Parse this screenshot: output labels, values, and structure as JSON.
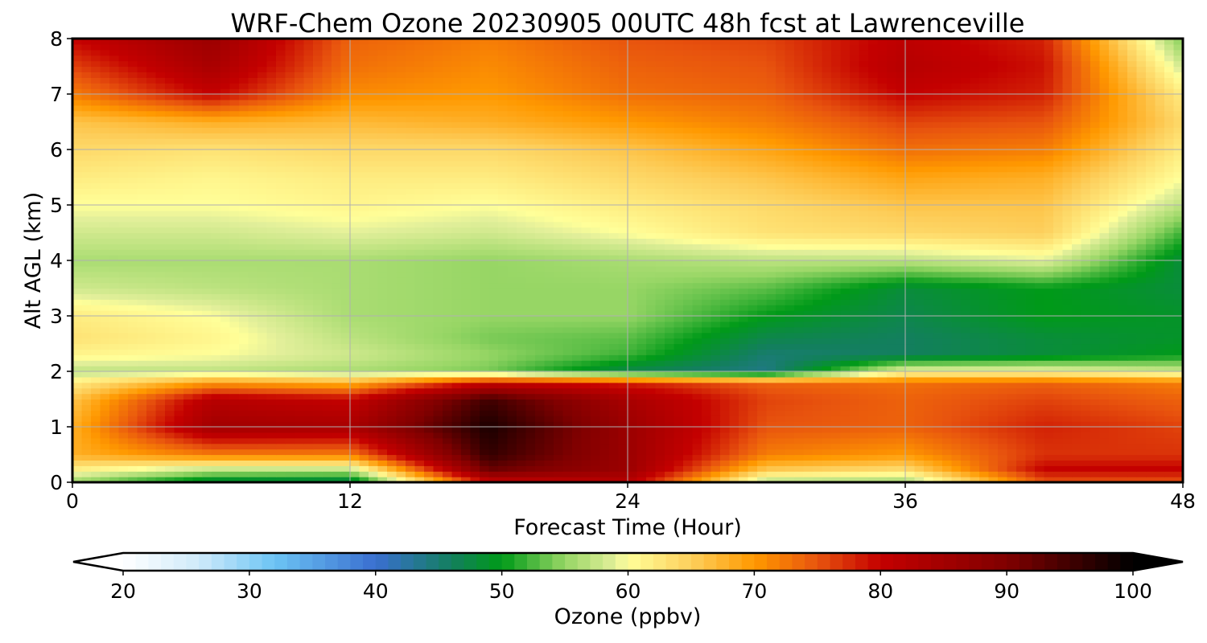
{
  "chart_data": {
    "type": "heatmap",
    "title": "WRF-Chem Ozone  20230905 00UTC 48h fcst at Lawrenceville",
    "xlabel": "Forecast Time (Hour)",
    "ylabel": "Alt AGL (km)",
    "xlim": [
      0,
      48
    ],
    "ylim": [
      0,
      8
    ],
    "xticks": [
      0,
      12,
      24,
      36,
      48
    ],
    "yticks": [
      0,
      1,
      2,
      3,
      4,
      5,
      6,
      7,
      8
    ],
    "grid": true,
    "x": [
      0,
      6,
      12,
      18,
      24,
      30,
      36,
      42,
      48
    ],
    "y": [
      0,
      0.25,
      0.5,
      1,
      1.5,
      1.8,
      2,
      2.3,
      2.6,
      3,
      3.5,
      4,
      4.5,
      5,
      5.5,
      6,
      6.5,
      7,
      7.5,
      8
    ],
    "z": [
      [
        55,
        47,
        46,
        80,
        82,
        56,
        55,
        75,
        75
      ],
      [
        62,
        58,
        58,
        92,
        86,
        66,
        64,
        80,
        80
      ],
      [
        68,
        72,
        72,
        96,
        86,
        72,
        70,
        77,
        77
      ],
      [
        68,
        85,
        84,
        98,
        86,
        75,
        74,
        78,
        76
      ],
      [
        66,
        82,
        80,
        95,
        84,
        76,
        74,
        76,
        74
      ],
      [
        62,
        70,
        68,
        80,
        78,
        74,
        73,
        74,
        72
      ],
      [
        57,
        57,
        56,
        54,
        47,
        44,
        60,
        60,
        58
      ],
      [
        61,
        60,
        58,
        55,
        52,
        45,
        46,
        48,
        50
      ],
      [
        63,
        61,
        57,
        54,
        53,
        47,
        46,
        48,
        49
      ],
      [
        62,
        60,
        56,
        55,
        55,
        50,
        47,
        50,
        49
      ],
      [
        58,
        57,
        56,
        55,
        55,
        53,
        48,
        50,
        48
      ],
      [
        56,
        56,
        56,
        55,
        56,
        57,
        57,
        59,
        48
      ],
      [
        58,
        58,
        59,
        58,
        60,
        63,
        64,
        65,
        52
      ],
      [
        60,
        60,
        61,
        60,
        62,
        64,
        66,
        66,
        57
      ],
      [
        62,
        61,
        62,
        62,
        64,
        66,
        69,
        68,
        60
      ],
      [
        64,
        63,
        64,
        64,
        66,
        69,
        73,
        72,
        62
      ],
      [
        66,
        68,
        67,
        68,
        70,
        72,
        76,
        75,
        64
      ],
      [
        72,
        80,
        71,
        70,
        73,
        74,
        80,
        78,
        62
      ],
      [
        76,
        84,
        73,
        71,
        74,
        75,
        82,
        79,
        58
      ],
      [
        80,
        86,
        74,
        72,
        75,
        76,
        81,
        78,
        54
      ]
    ],
    "colorbar": {
      "label": "Ozone  (ppbv)",
      "min": 20,
      "max": 100,
      "extend": "both",
      "ticks": [
        20,
        30,
        40,
        50,
        60,
        70,
        80,
        90,
        100
      ],
      "stops": [
        {
          "v": 20,
          "c": "#ffffff"
        },
        {
          "v": 26,
          "c": "#cfeafa"
        },
        {
          "v": 32,
          "c": "#6cc4f4"
        },
        {
          "v": 40,
          "c": "#3a6fd0"
        },
        {
          "v": 46,
          "c": "#137f5e"
        },
        {
          "v": 50,
          "c": "#009a18"
        },
        {
          "v": 55,
          "c": "#97d665"
        },
        {
          "v": 59,
          "c": "#e2ef9a"
        },
        {
          "v": 60,
          "c": "#ffff99"
        },
        {
          "v": 65,
          "c": "#fdcf5c"
        },
        {
          "v": 70,
          "c": "#ff9900"
        },
        {
          "v": 75,
          "c": "#e8540e"
        },
        {
          "v": 80,
          "c": "#c40000"
        },
        {
          "v": 90,
          "c": "#800000"
        },
        {
          "v": 100,
          "c": "#000000"
        }
      ]
    }
  }
}
